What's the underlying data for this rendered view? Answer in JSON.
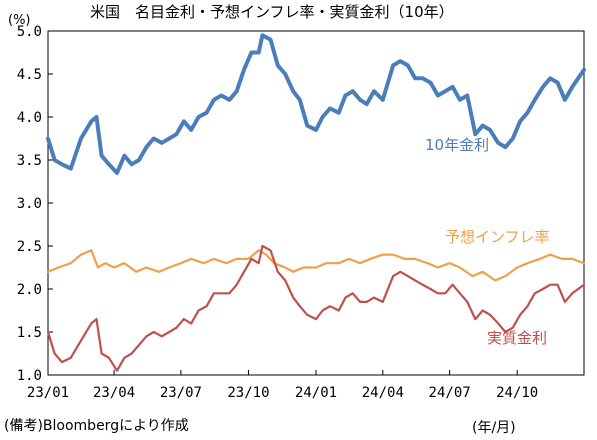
{
  "chart_data": {
    "type": "line",
    "title": "米国　名目金利・予想インフレ率・実質金利（10年）",
    "ylabel": "(%)",
    "xlabel": "(年/月)",
    "source": "(備考)Bloombergにより作成",
    "ylim": [
      1.0,
      5.0
    ],
    "yticks": [
      "1.0",
      "1.5",
      "2.0",
      "2.5",
      "3.0",
      "3.5",
      "4.0",
      "4.5",
      "5.0"
    ],
    "xlim": [
      "2023-01-01",
      "2024-12-31"
    ],
    "xticks": [
      {
        "date": "2023-01-01",
        "label": "23/01"
      },
      {
        "date": "2023-04-01",
        "label": "23/04"
      },
      {
        "date": "2023-07-01",
        "label": "23/07"
      },
      {
        "date": "2023-10-01",
        "label": "23/10"
      },
      {
        "date": "2024-01-01",
        "label": "24/01"
      },
      {
        "date": "2024-04-01",
        "label": "24/04"
      },
      {
        "date": "2024-07-01",
        "label": "24/07"
      },
      {
        "date": "2024-10-01",
        "label": "24/10"
      }
    ],
    "grid": false,
    "legend": "inline labels",
    "series": [
      {
        "name": "10年金利",
        "color": "#4a7ebb",
        "x": [
          "2023-01-01",
          "2023-01-10",
          "2023-01-20",
          "2023-02-01",
          "2023-02-15",
          "2023-03-01",
          "2023-03-08",
          "2023-03-15",
          "2023-03-25",
          "2023-04-05",
          "2023-04-15",
          "2023-04-25",
          "2023-05-05",
          "2023-05-15",
          "2023-05-25",
          "2023-06-05",
          "2023-06-15",
          "2023-06-25",
          "2023-07-05",
          "2023-07-15",
          "2023-07-25",
          "2023-08-05",
          "2023-08-15",
          "2023-08-25",
          "2023-09-05",
          "2023-09-15",
          "2023-09-25",
          "2023-10-05",
          "2023-10-15",
          "2023-10-20",
          "2023-10-31",
          "2023-11-10",
          "2023-11-20",
          "2023-12-01",
          "2023-12-10",
          "2023-12-20",
          "2024-01-01",
          "2024-01-10",
          "2024-01-20",
          "2024-02-01",
          "2024-02-10",
          "2024-02-20",
          "2024-03-01",
          "2024-03-10",
          "2024-03-20",
          "2024-04-01",
          "2024-04-15",
          "2024-04-25",
          "2024-05-05",
          "2024-05-15",
          "2024-05-25",
          "2024-06-05",
          "2024-06-15",
          "2024-06-25",
          "2024-07-05",
          "2024-07-15",
          "2024-07-25",
          "2024-08-05",
          "2024-08-15",
          "2024-08-25",
          "2024-09-05",
          "2024-09-15",
          "2024-09-25",
          "2024-10-05",
          "2024-10-15",
          "2024-10-25",
          "2024-11-05",
          "2024-11-15",
          "2024-11-25",
          "2024-12-05",
          "2024-12-15",
          "2024-12-31"
        ],
        "values": [
          3.75,
          3.5,
          3.45,
          3.4,
          3.75,
          3.95,
          4.0,
          3.55,
          3.45,
          3.35,
          3.55,
          3.45,
          3.5,
          3.65,
          3.75,
          3.7,
          3.75,
          3.8,
          3.95,
          3.85,
          4.0,
          4.05,
          4.2,
          4.25,
          4.2,
          4.3,
          4.55,
          4.75,
          4.75,
          4.95,
          4.9,
          4.6,
          4.5,
          4.3,
          4.2,
          3.9,
          3.85,
          4.0,
          4.1,
          4.05,
          4.25,
          4.3,
          4.2,
          4.15,
          4.3,
          4.2,
          4.6,
          4.65,
          4.6,
          4.45,
          4.45,
          4.4,
          4.25,
          4.3,
          4.35,
          4.2,
          4.25,
          3.8,
          3.9,
          3.85,
          3.7,
          3.65,
          3.75,
          3.95,
          4.05,
          4.2,
          4.35,
          4.45,
          4.4,
          4.2,
          4.35,
          4.55
        ]
      },
      {
        "name": "予想インフレ率",
        "color": "#f0a04b",
        "x": [
          "2023-01-01",
          "2023-01-15",
          "2023-02-01",
          "2023-02-15",
          "2023-03-01",
          "2023-03-10",
          "2023-03-20",
          "2023-04-01",
          "2023-04-15",
          "2023-05-01",
          "2023-05-15",
          "2023-06-01",
          "2023-06-15",
          "2023-07-01",
          "2023-07-15",
          "2023-08-01",
          "2023-08-15",
          "2023-09-01",
          "2023-09-15",
          "2023-10-01",
          "2023-10-15",
          "2023-10-25",
          "2023-11-05",
          "2023-11-20",
          "2023-12-01",
          "2023-12-15",
          "2024-01-01",
          "2024-01-15",
          "2024-02-01",
          "2024-02-15",
          "2024-03-01",
          "2024-03-15",
          "2024-04-01",
          "2024-04-15",
          "2024-05-01",
          "2024-05-15",
          "2024-06-01",
          "2024-06-15",
          "2024-07-01",
          "2024-07-15",
          "2024-08-01",
          "2024-08-15",
          "2024-09-01",
          "2024-09-15",
          "2024-10-01",
          "2024-10-15",
          "2024-11-01",
          "2024-11-15",
          "2024-12-01",
          "2024-12-15",
          "2024-12-31"
        ],
        "values": [
          2.2,
          2.25,
          2.3,
          2.4,
          2.45,
          2.25,
          2.3,
          2.25,
          2.3,
          2.2,
          2.25,
          2.2,
          2.25,
          2.3,
          2.35,
          2.3,
          2.35,
          2.3,
          2.35,
          2.35,
          2.45,
          2.4,
          2.3,
          2.25,
          2.2,
          2.25,
          2.25,
          2.3,
          2.3,
          2.35,
          2.3,
          2.35,
          2.4,
          2.4,
          2.35,
          2.35,
          2.3,
          2.25,
          2.3,
          2.25,
          2.15,
          2.2,
          2.1,
          2.15,
          2.25,
          2.3,
          2.35,
          2.4,
          2.35,
          2.35,
          2.3
        ]
      },
      {
        "name": "実質金利",
        "color": "#c0504d",
        "x": [
          "2023-01-01",
          "2023-01-10",
          "2023-01-20",
          "2023-02-01",
          "2023-02-15",
          "2023-03-01",
          "2023-03-08",
          "2023-03-15",
          "2023-03-25",
          "2023-04-05",
          "2023-04-15",
          "2023-04-25",
          "2023-05-05",
          "2023-05-15",
          "2023-05-25",
          "2023-06-05",
          "2023-06-15",
          "2023-06-25",
          "2023-07-05",
          "2023-07-15",
          "2023-07-25",
          "2023-08-05",
          "2023-08-15",
          "2023-08-25",
          "2023-09-05",
          "2023-09-15",
          "2023-09-25",
          "2023-10-05",
          "2023-10-15",
          "2023-10-20",
          "2023-10-31",
          "2023-11-10",
          "2023-11-20",
          "2023-12-01",
          "2023-12-10",
          "2023-12-20",
          "2024-01-01",
          "2024-01-10",
          "2024-01-20",
          "2024-02-01",
          "2024-02-10",
          "2024-02-20",
          "2024-03-01",
          "2024-03-10",
          "2024-03-20",
          "2024-04-01",
          "2024-04-15",
          "2024-04-25",
          "2024-05-05",
          "2024-05-15",
          "2024-05-25",
          "2024-06-05",
          "2024-06-15",
          "2024-06-25",
          "2024-07-05",
          "2024-07-15",
          "2024-07-25",
          "2024-08-05",
          "2024-08-15",
          "2024-08-25",
          "2024-09-05",
          "2024-09-15",
          "2024-09-25",
          "2024-10-05",
          "2024-10-15",
          "2024-10-25",
          "2024-11-05",
          "2024-11-15",
          "2024-11-25",
          "2024-12-05",
          "2024-12-15",
          "2024-12-31"
        ],
        "values": [
          1.5,
          1.25,
          1.15,
          1.2,
          1.4,
          1.6,
          1.65,
          1.25,
          1.2,
          1.05,
          1.2,
          1.25,
          1.35,
          1.45,
          1.5,
          1.45,
          1.5,
          1.55,
          1.65,
          1.6,
          1.75,
          1.8,
          1.95,
          1.95,
          1.95,
          2.05,
          2.2,
          2.35,
          2.3,
          2.5,
          2.45,
          2.2,
          2.1,
          1.9,
          1.8,
          1.7,
          1.65,
          1.75,
          1.8,
          1.75,
          1.9,
          1.95,
          1.85,
          1.85,
          1.9,
          1.85,
          2.15,
          2.2,
          2.15,
          2.1,
          2.05,
          2.0,
          1.95,
          1.95,
          2.05,
          1.95,
          1.85,
          1.65,
          1.75,
          1.7,
          1.6,
          1.5,
          1.55,
          1.7,
          1.8,
          1.95,
          2.0,
          2.05,
          2.05,
          1.85,
          1.95,
          2.05
        ]
      }
    ],
    "series_labels": [
      {
        "series": 0,
        "text": "10年金利"
      },
      {
        "series": 1,
        "text": "予想インフレ率"
      },
      {
        "series": 2,
        "text": "実質金利"
      }
    ]
  }
}
